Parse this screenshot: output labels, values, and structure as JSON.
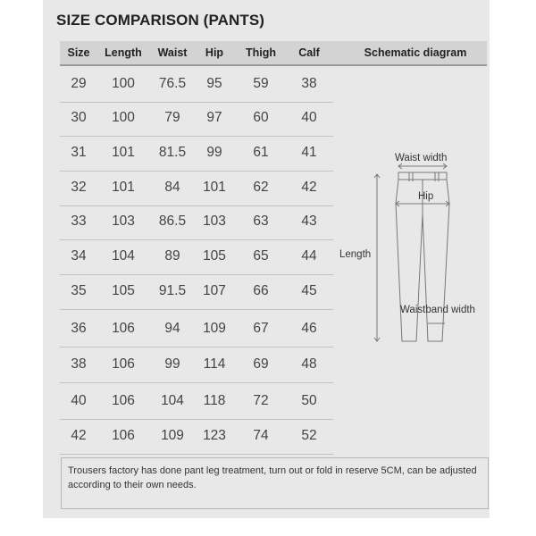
{
  "title": "SIZE COMPARISON (PANTS)",
  "columns": [
    "Size",
    "Length",
    "Waist",
    "Hip",
    "Thigh",
    "Calf",
    "Schematic diagram"
  ],
  "rows": [
    [
      "29",
      "100",
      "76.5",
      "95",
      "59",
      "38"
    ],
    [
      "30",
      "100",
      "79",
      "97",
      "60",
      "40"
    ],
    [
      "31",
      "101",
      "81.5",
      "99",
      "61",
      "41"
    ],
    [
      "32",
      "101",
      "84",
      "101",
      "62",
      "42"
    ],
    [
      "33",
      "103",
      "86.5",
      "103",
      "63",
      "43"
    ],
    [
      "34",
      "104",
      "89",
      "105",
      "65",
      "44"
    ],
    [
      "35",
      "105",
      "91.5",
      "107",
      "66",
      "45"
    ],
    [
      "36",
      "106",
      "94",
      "109",
      "67",
      "46"
    ],
    [
      "38",
      "106",
      "99",
      "114",
      "69",
      "48"
    ],
    [
      "40",
      "106",
      "104",
      "118",
      "72",
      "50"
    ],
    [
      "42",
      "106",
      "109",
      "123",
      "74",
      "52"
    ]
  ],
  "diagram": {
    "waist_width": "Waist width",
    "hip": "Hip",
    "length": "Length",
    "waistband_width": "Waistband width"
  },
  "note": "Trousers factory has done pant leg treatment, turn out or fold in reserve 5CM, can be adjusted according to their own needs.",
  "colors": {
    "panel": "#e8e8e8",
    "header": "#d3d3d3",
    "text": "#444444"
  }
}
